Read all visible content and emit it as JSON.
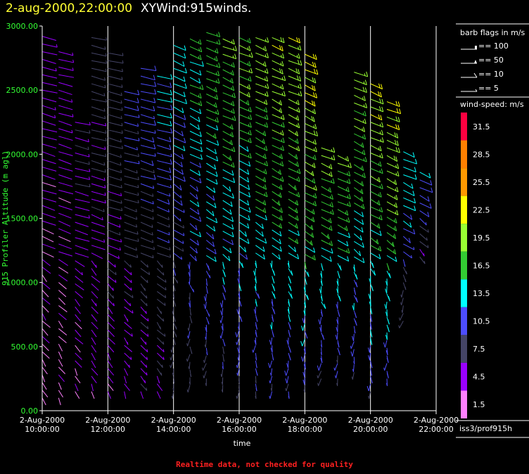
{
  "header": {
    "date_label": "2-aug-2000,22:00:00",
    "product_label": "XYWind:915winds."
  },
  "footer": {
    "note": "Realtime data, not checked for quality"
  },
  "chart_data": {
    "type": "wind-barb",
    "title": "2-aug-2000,22:00:00  XYWind:915winds.",
    "xlabel": "time",
    "ylabel": "915 Profiler Altitude (m agl)",
    "ylim": [
      0,
      3000
    ],
    "y_ticks": [
      "0.00",
      "500.00",
      "1000.00",
      "1500.00",
      "2000.00",
      "2500.00",
      "3000.00"
    ],
    "x_ticks": [
      {
        "date": "2-Aug-2000",
        "time": "10:00:00"
      },
      {
        "date": "2-Aug-2000",
        "time": "12:00:00"
      },
      {
        "date": "2-Aug-2000",
        "time": "14:00:00"
      },
      {
        "date": "2-Aug-2000",
        "time": "16:00:00"
      },
      {
        "date": "2-Aug-2000",
        "time": "18:00:00"
      },
      {
        "date": "2-Aug-2000",
        "time": "20:00:00"
      },
      {
        "date": "2-Aug-2000",
        "time": "22:00:00"
      }
    ],
    "xlim_hours": [
      10,
      22
    ],
    "grid": "vertical at each x tick",
    "station": "iss3/prof915h",
    "legend": {
      "title": "barb flags in m/s",
      "entries": [
        {
          "label": "== 100",
          "flag": "pennant"
        },
        {
          "label": "== 50",
          "flag": "triangle"
        },
        {
          "label": "== 10",
          "flag": "full-barb"
        },
        {
          "label": "== 5",
          "flag": "half-barb"
        }
      ]
    },
    "colorbar": {
      "title": "wind-speed: m/s",
      "labels": [
        "31.5",
        "28.5",
        "25.5",
        "22.5",
        "19.5",
        "16.5",
        "13.5",
        "10.5",
        "7.5",
        "4.5",
        "1.5"
      ],
      "colors": [
        "#ff0040",
        "#ff8000",
        "#ff9900",
        "#ffff00",
        "#99ff33",
        "#33cc33",
        "#00ffff",
        "#4d4dff",
        "#444466",
        "#9900ff",
        "#ff80ff"
      ]
    },
    "profiles": [
      {
        "hour": 10.0,
        "ymin": 100,
        "ymax": 2950,
        "base": 4
      },
      {
        "hour": 10.5,
        "ymin": 100,
        "ymax": 2850,
        "base": 4
      },
      {
        "hour": 11.0,
        "ymin": 150,
        "ymax": 2300,
        "base": 5
      },
      {
        "hour": 11.5,
        "ymin": 150,
        "ymax": 2950,
        "base": 6
      },
      {
        "hour": 12.0,
        "ymin": 150,
        "ymax": 2800,
        "base": 7
      },
      {
        "hour": 12.5,
        "ymin": 150,
        "ymax": 2500,
        "base": 8
      },
      {
        "hour": 13.0,
        "ymin": 150,
        "ymax": 2700,
        "base": 9
      },
      {
        "hour": 13.5,
        "ymin": 150,
        "ymax": 2650,
        "base": 10
      },
      {
        "hour": 14.0,
        "ymin": 150,
        "ymax": 2900,
        "base": 11
      },
      {
        "hour": 14.5,
        "ymin": 200,
        "ymax": 2950,
        "base": 13
      },
      {
        "hour": 15.0,
        "ymin": 250,
        "ymax": 2950,
        "base": 14
      },
      {
        "hour": 15.5,
        "ymin": 200,
        "ymax": 2950,
        "base": 15
      },
      {
        "hour": 16.0,
        "ymin": 150,
        "ymax": 2950,
        "base": 15
      },
      {
        "hour": 16.5,
        "ymin": 150,
        "ymax": 2950,
        "base": 16
      },
      {
        "hour": 17.0,
        "ymin": 150,
        "ymax": 2950,
        "base": 17
      },
      {
        "hour": 17.5,
        "ymin": 150,
        "ymax": 2950,
        "base": 17
      },
      {
        "hour": 18.0,
        "ymin": 200,
        "ymax": 2800,
        "base": 18
      },
      {
        "hour": 18.5,
        "ymin": 250,
        "ymax": 2100,
        "base": 16
      },
      {
        "hour": 19.0,
        "ymin": 250,
        "ymax": 2000,
        "base": 15
      },
      {
        "hour": 19.5,
        "ymin": 300,
        "ymax": 2650,
        "base": 16
      },
      {
        "hour": 20.0,
        "ymin": 150,
        "ymax": 2550,
        "base": 17
      },
      {
        "hour": 20.5,
        "ymin": 250,
        "ymax": 2450,
        "base": 18
      },
      {
        "hour": 21.0,
        "ymin": 700,
        "ymax": 2050,
        "base": 12
      },
      {
        "hour": 21.5,
        "ymin": 1200,
        "ymax": 1900,
        "base": 11
      }
    ]
  }
}
